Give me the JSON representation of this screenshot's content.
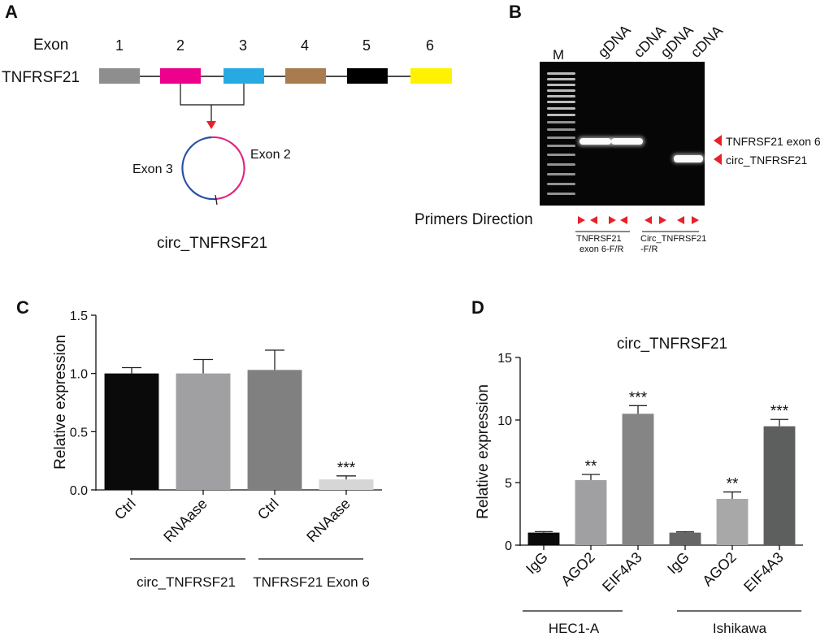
{
  "panels": {
    "a": "A",
    "b": "B",
    "c": "C",
    "d": "D"
  },
  "panel_a": {
    "exon_header": "Exon",
    "gene": "TNFRSF21",
    "exons": [
      {
        "num": "1",
        "color": "#8e8e8e"
      },
      {
        "num": "2",
        "color": "#ec008c"
      },
      {
        "num": "3",
        "color": "#27aae1"
      },
      {
        "num": "4",
        "color": "#a97c50"
      },
      {
        "num": "5",
        "color": "#000000"
      },
      {
        "num": "6",
        "color": "#fff200"
      }
    ],
    "circle_left": "Exon 3",
    "circle_right": "Exon 2",
    "circle_name": "circ_TNFRSF21",
    "arrow_color": "#e8202a"
  },
  "panel_b": {
    "ladder": "M",
    "lanes": [
      "gDNA",
      "cDNA",
      "gDNA",
      "cDNA"
    ],
    "band_upper": "TNFRSF21 exon 6",
    "band_lower": "circ_TNFRSF21",
    "primers_title": "Primers Direction",
    "primer_group1_l1": "TNFRSF21",
    "primer_group1_l2": "exon 6-F/R",
    "primer_group2_l1": "Circ_TNFRSF21",
    "primer_group2_l2": "-F/R",
    "marker_color": "#e8202a"
  },
  "chart_data": [
    {
      "type": "bar",
      "panel": "C",
      "ylabel": "Relative  expression",
      "ylim": [
        0,
        1.5
      ],
      "yticks": [
        "0.0",
        "0.5",
        "1.0",
        "1.5"
      ],
      "categories": [
        "Ctrl",
        "RNAase",
        "Ctrl",
        "RNAase"
      ],
      "values": [
        1.0,
        1.0,
        1.03,
        0.09
      ],
      "errors": [
        0.05,
        0.12,
        0.17,
        0.03
      ],
      "colors": [
        "#0a0a0a",
        "#a0a0a2",
        "#7f807f",
        "#d6d6d6"
      ],
      "annotations": [
        "",
        "",
        "",
        "***"
      ],
      "groups": [
        "circ_TNFRSF21",
        "TNFRSF21 Exon 6"
      ]
    },
    {
      "type": "bar",
      "panel": "D",
      "title": "circ_TNFRSF21",
      "ylabel": "Relative  expression",
      "ylim": [
        0,
        15
      ],
      "yticks": [
        "0",
        "5",
        "10",
        "15"
      ],
      "categories": [
        "IgG",
        "AGO2",
        "EIF4A3",
        "IgG",
        "AGO2",
        "EIF4A3"
      ],
      "values": [
        1.0,
        5.2,
        10.5,
        1.0,
        3.7,
        9.5
      ],
      "errors": [
        0.08,
        0.45,
        0.65,
        0.06,
        0.55,
        0.55
      ],
      "colors": [
        "#0a0a0a",
        "#a0a0a2",
        "#858585",
        "#666666",
        "#a8a8a8",
        "#5d5f5f"
      ],
      "annotations": [
        "",
        "**",
        "***",
        "",
        "**",
        "***"
      ],
      "groups": [
        "HEC1-A",
        "Ishikawa"
      ]
    }
  ]
}
